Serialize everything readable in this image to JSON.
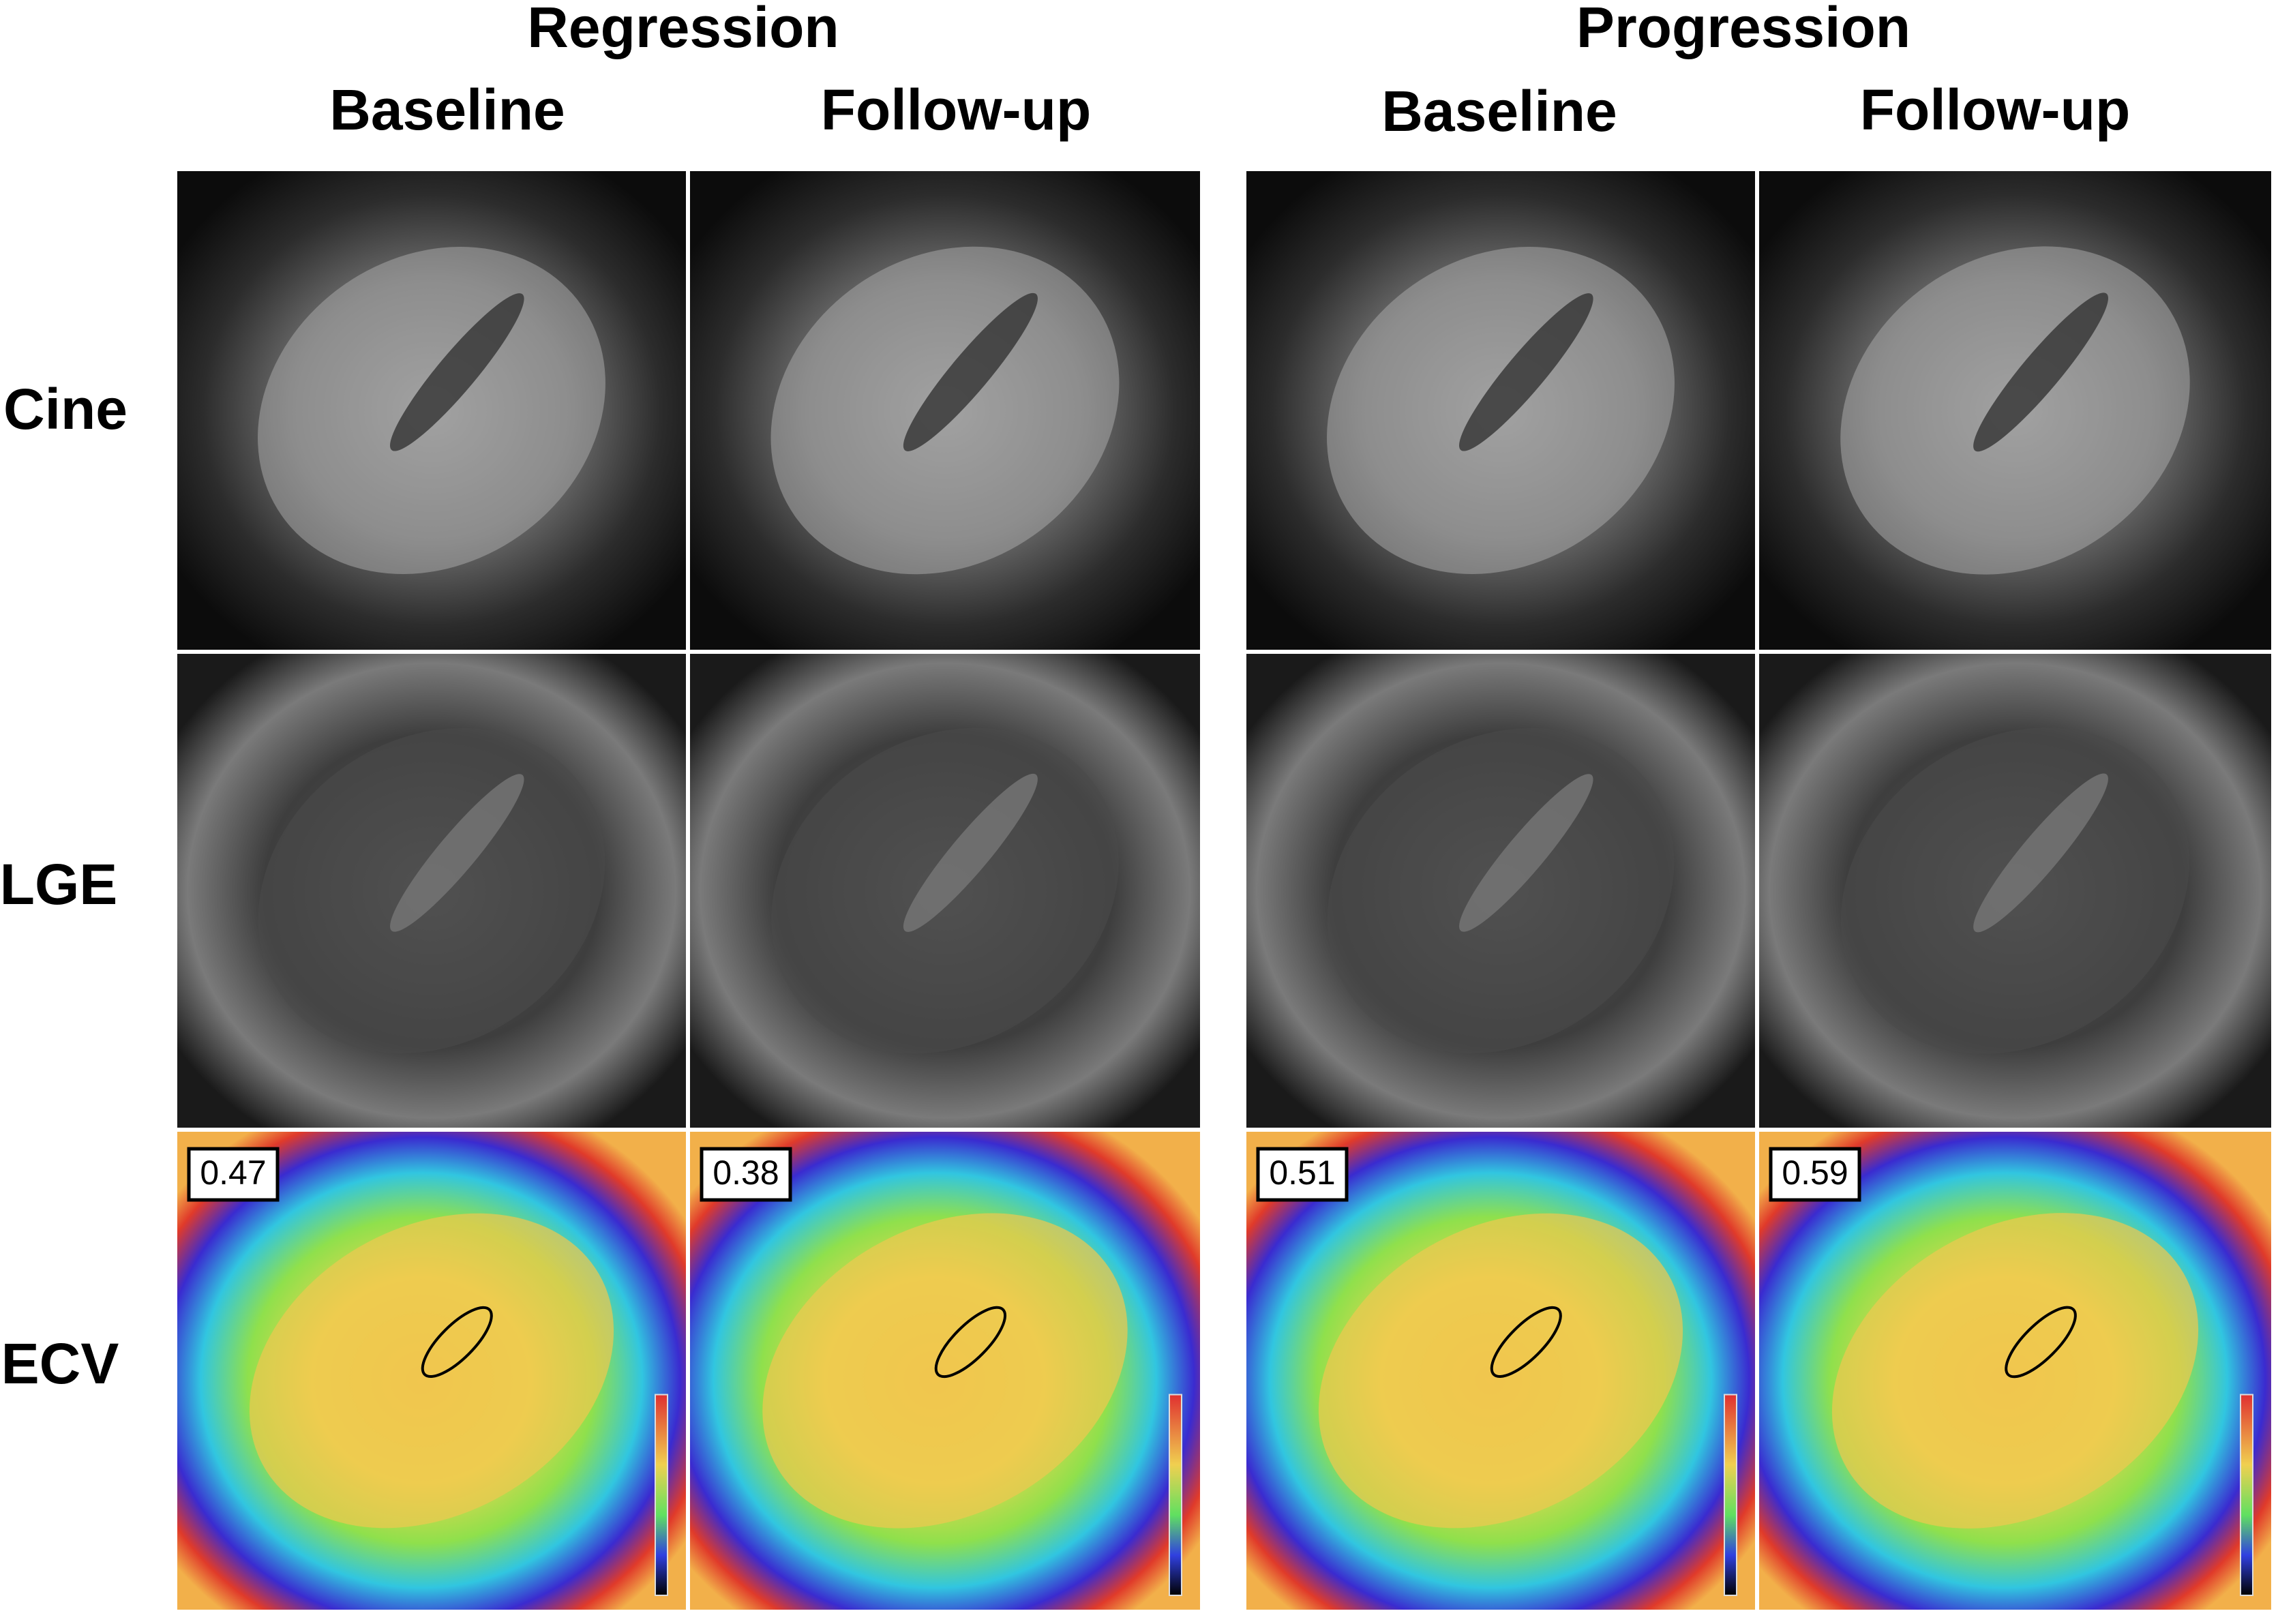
{
  "header": {
    "groups": [
      "Regression",
      "Progression"
    ],
    "columns": [
      "Baseline",
      "Follow-up",
      "Baseline",
      "Follow-up"
    ]
  },
  "rows": [
    "Cine",
    "LGE",
    "ECV"
  ],
  "ecv_values": [
    0.47,
    0.38,
    0.51,
    0.59
  ]
}
